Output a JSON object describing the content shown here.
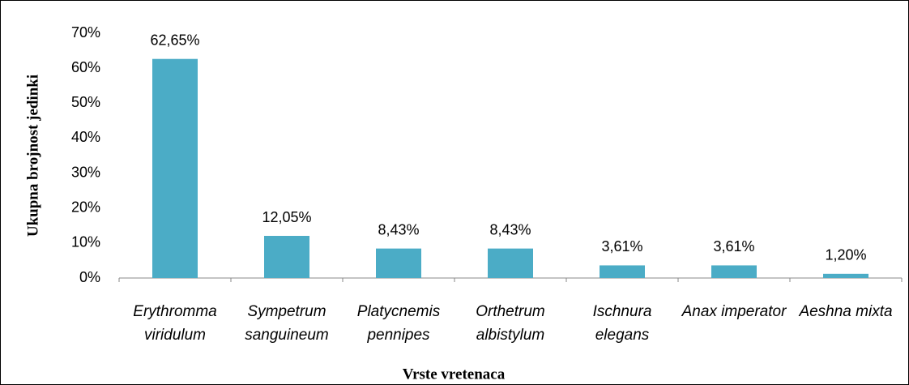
{
  "chart_data": {
    "type": "bar",
    "x_label": "Vrste vretenaca",
    "y_label": "Ukupna brojnost jedinki",
    "categories": [
      "Erythromma viridulum",
      "Sympetrum sanguineum",
      "Platycnemis pennipes",
      "Orthetrum albistylum",
      "Ischnura elegans",
      "Anax imperator",
      "Aeshna mixta"
    ],
    "values": [
      62.65,
      12.05,
      8.43,
      8.43,
      3.61,
      3.61,
      1.2
    ],
    "value_labels": [
      "62,65%",
      "12,05%",
      "8,43%",
      "8,43%",
      "3,61%",
      "3,61%",
      "1,20%"
    ],
    "color": "#4bacc6",
    "ylim": [
      0,
      70
    ],
    "yticks": [
      {
        "value": 0,
        "label": "0%"
      },
      {
        "value": 10,
        "label": "10%"
      },
      {
        "value": 20,
        "label": "20%"
      },
      {
        "value": 30,
        "label": "30%"
      },
      {
        "value": 40,
        "label": "40%"
      },
      {
        "value": 50,
        "label": "50%"
      },
      {
        "value": 60,
        "label": "60%"
      },
      {
        "value": 70,
        "label": "70%"
      }
    ],
    "grid": false
  }
}
